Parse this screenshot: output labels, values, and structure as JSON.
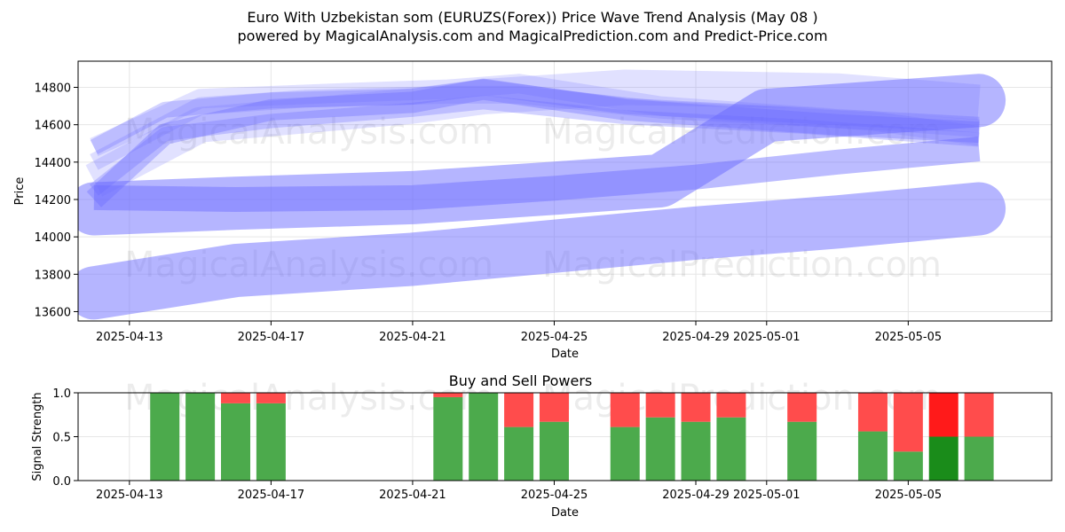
{
  "title": "Euro With Uzbekistan som (EURUZS(Forex)) Price Wave Trend Analysis (May 08 )",
  "subtitle": "powered by MagicalAnalysis.com and MagicalPrediction.com and Predict-Price.com",
  "watermarks": [
    "MagicalAnalysis.com",
    "MagicalPrediction.com"
  ],
  "chart_data": [
    {
      "type": "line",
      "xlabel": "Date",
      "ylabel": "Price",
      "x_start": "2025-04-12",
      "x_end": "2025-05-08",
      "ylim": [
        13550,
        14940
      ],
      "xticks": [
        "2025-04-13",
        "2025-04-17",
        "2025-04-21",
        "2025-04-25",
        "2025-04-29",
        "2025-05-01",
        "2025-05-05"
      ],
      "yticks": [
        13600,
        13800,
        14000,
        14200,
        14400,
        14600,
        14800
      ],
      "grid": true,
      "series": [
        {
          "x": [
            "2025-04-12",
            "2025-04-16",
            "2025-04-21",
            "2025-04-25",
            "2025-04-29",
            "2025-05-03",
            "2025-05-07"
          ],
          "y": [
            13700,
            13820,
            13880,
            13950,
            14020,
            14080,
            14150
          ]
        },
        {
          "x": [
            "2025-04-12",
            "2025-04-16",
            "2025-04-21",
            "2025-04-25",
            "2025-04-28",
            "2025-05-01",
            "2025-05-07"
          ],
          "y": [
            14150,
            14180,
            14210,
            14260,
            14300,
            14650,
            14730
          ]
        },
        {
          "x": [
            "2025-04-12",
            "2025-04-16",
            "2025-04-21",
            "2025-04-25",
            "2025-04-29",
            "2025-05-03",
            "2025-05-07"
          ],
          "y": [
            14210,
            14200,
            14210,
            14260,
            14320,
            14400,
            14470
          ]
        },
        {
          "x": [
            "2025-04-12",
            "2025-04-15",
            "2025-04-21",
            "2025-04-23",
            "2025-04-27",
            "2025-05-03",
            "2025-05-07"
          ],
          "y": [
            14300,
            14600,
            14700,
            14750,
            14800,
            14780,
            14720
          ]
        },
        {
          "x": [
            "2025-04-12",
            "2025-04-14",
            "2025-04-17",
            "2025-04-21",
            "2025-04-23",
            "2025-04-27",
            "2025-05-03",
            "2025-05-07"
          ],
          "y": [
            14200,
            14550,
            14680,
            14720,
            14790,
            14680,
            14600,
            14560
          ]
        },
        {
          "x": [
            "2025-04-12",
            "2025-04-14",
            "2025-04-17",
            "2025-04-21",
            "2025-04-23",
            "2025-04-27",
            "2025-05-03",
            "2025-05-07"
          ],
          "y": [
            14480,
            14680,
            14730,
            14750,
            14800,
            14700,
            14640,
            14600
          ]
        },
        {
          "x": [
            "2025-04-12",
            "2025-04-15",
            "2025-04-18",
            "2025-04-22",
            "2025-04-24",
            "2025-04-28",
            "2025-05-04",
            "2025-05-07"
          ],
          "y": [
            14400,
            14700,
            14740,
            14760,
            14760,
            14680,
            14620,
            14580
          ]
        },
        {
          "x": [
            "2025-04-12",
            "2025-04-15",
            "2025-04-19",
            "2025-04-22",
            "2025-04-24",
            "2025-04-28",
            "2025-05-04",
            "2025-05-07"
          ],
          "y": [
            14480,
            14740,
            14770,
            14790,
            14820,
            14700,
            14620,
            14540
          ]
        },
        {
          "x": [
            "2025-04-12",
            "2025-04-14",
            "2025-04-17",
            "2025-04-21",
            "2025-04-23",
            "2025-04-27",
            "2025-05-02",
            "2025-05-07"
          ],
          "y": [
            14250,
            14550,
            14620,
            14680,
            14720,
            14640,
            14590,
            14520
          ]
        }
      ]
    },
    {
      "type": "bar",
      "title": "Buy and Sell Powers",
      "xlabel": "Date",
      "ylabel": "Signal Strength",
      "x_start": "2025-04-12",
      "x_end": "2025-05-08",
      "ylim": [
        0,
        1
      ],
      "yticks": [
        "0.0",
        "0.5",
        "1.0"
      ],
      "xticks": [
        "2025-04-13",
        "2025-04-17",
        "2025-04-21",
        "2025-04-25",
        "2025-04-29",
        "2025-05-01",
        "2025-05-05"
      ],
      "categories": [
        "2025-04-14",
        "2025-04-15",
        "2025-04-16",
        "2025-04-17",
        "2025-04-22",
        "2025-04-23",
        "2025-04-24",
        "2025-04-25",
        "2025-04-27",
        "2025-04-28",
        "2025-04-29",
        "2025-04-30",
        "2025-05-02",
        "2025-05-04",
        "2025-05-05",
        "2025-05-06",
        "2025-05-07"
      ],
      "buy": [
        1.0,
        1.0,
        0.88,
        0.88,
        0.95,
        1.0,
        0.61,
        0.67,
        0.61,
        0.72,
        0.67,
        0.72,
        0.67,
        0.56,
        0.33,
        0.5,
        0.5
      ],
      "sell": [
        0.0,
        0.0,
        0.12,
        0.12,
        0.05,
        0.0,
        0.39,
        0.33,
        0.39,
        0.28,
        0.33,
        0.28,
        0.33,
        0.44,
        0.67,
        0.5,
        0.5
      ],
      "highlight": "2025-05-06",
      "colors": {
        "buy": "#4caa4c",
        "sell": "#ff4c4c",
        "buy_strong": "#1a8c1a",
        "sell_strong": "#ff1a1a"
      }
    }
  ],
  "colors": {
    "wave": "#6b6bff",
    "grid": "#e6e6e6"
  }
}
